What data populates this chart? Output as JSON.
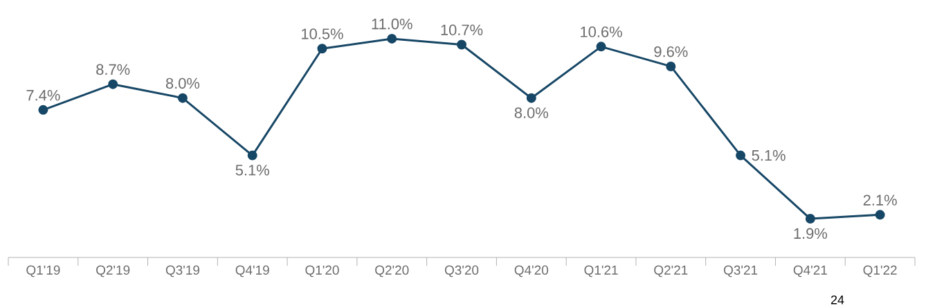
{
  "chart_data": {
    "type": "line",
    "categories": [
      "Q1'19",
      "Q2'19",
      "Q3'19",
      "Q4'19",
      "Q1'20",
      "Q2'20",
      "Q3'20",
      "Q4'20",
      "Q1'21",
      "Q2'21",
      "Q3'21",
      "Q4'21",
      "Q1'22"
    ],
    "series": [
      {
        "color": "#174766",
        "values": [
          7.4,
          8.7,
          8.0,
          5.1,
          10.5,
          11.0,
          10.7,
          8.0,
          10.6,
          9.6,
          5.1,
          1.9,
          2.1
        ],
        "value_labels": [
          "7.4%",
          "8.7%",
          "8.0%",
          "5.1%",
          "10.5%",
          "11.0%",
          "10.7%",
          "8.0%",
          "10.6%",
          "9.6%",
          "5.1%",
          "1.9%",
          "2.1%"
        ]
      }
    ],
    "marker": "circle",
    "line_style": "solid",
    "annotations": [
      "24"
    ]
  }
}
